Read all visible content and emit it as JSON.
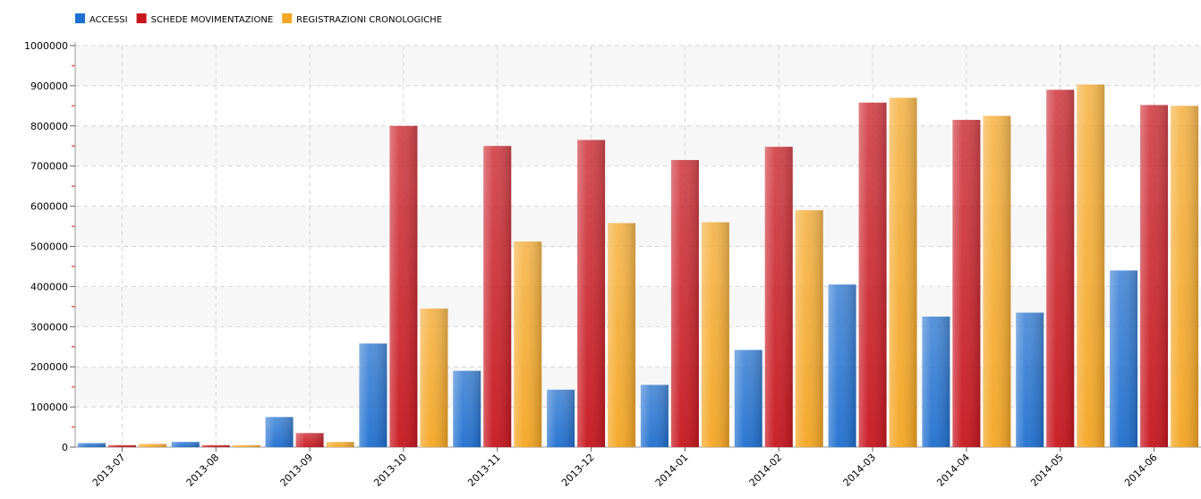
{
  "chart_data": {
    "type": "bar",
    "categories": [
      "2013-07",
      "2013-08",
      "2013-09",
      "2013-10",
      "2013-11",
      "2013-12",
      "2014-01",
      "2014-02",
      "2014-03",
      "2014-04",
      "2014-05",
      "2014-06"
    ],
    "series": [
      {
        "name": "ACCESSI",
        "color": "#1f6fd0",
        "values": [
          10000,
          13000,
          75000,
          258000,
          190000,
          143000,
          155000,
          242000,
          405000,
          325000,
          335000,
          440000
        ]
      },
      {
        "name": "SCHEDE MOVIMENTAZIONE",
        "color": "#c8161e",
        "values": [
          5000,
          5000,
          35000,
          800000,
          750000,
          765000,
          715000,
          748000,
          858000,
          815000,
          890000,
          852000
        ]
      },
      {
        "name": "REGISTRAZIONI CRONOLOGICHE",
        "color": "#f5a623",
        "values": [
          8000,
          5000,
          13000,
          345000,
          512000,
          558000,
          560000,
          590000,
          870000,
          825000,
          903000,
          850000
        ]
      }
    ],
    "yticks": [
      0,
      100000,
      200000,
      300000,
      400000,
      500000,
      600000,
      700000,
      800000,
      900000,
      1000000
    ],
    "ylim": [
      0,
      1000000
    ],
    "grid": true,
    "legend_position": "top-left"
  }
}
